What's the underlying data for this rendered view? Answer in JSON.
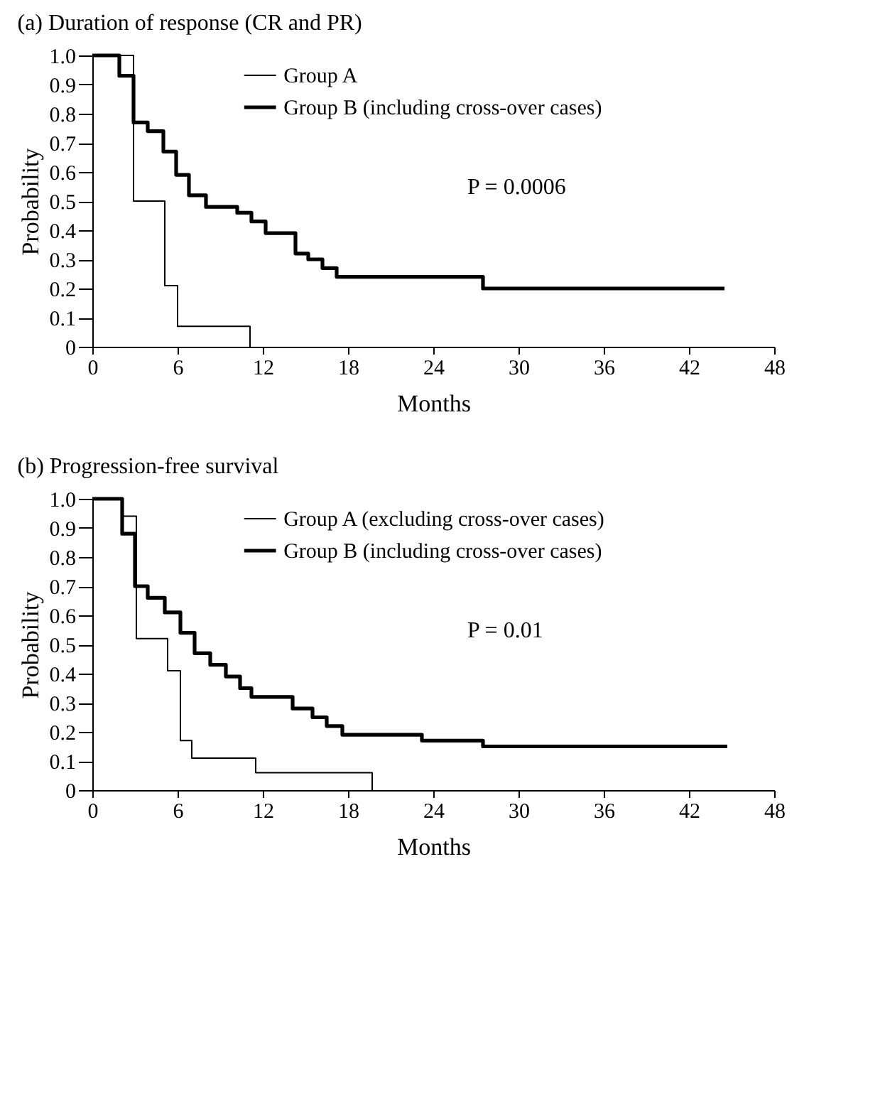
{
  "chart_data": [
    {
      "type": "step",
      "title": "(a) Duration of response (CR and PR)",
      "xlabel": "Months",
      "ylabel": "Probability",
      "xlim": [
        0,
        48
      ],
      "xticks": [
        0,
        6,
        12,
        18,
        24,
        30,
        36,
        42,
        48
      ],
      "ylim": [
        0,
        1
      ],
      "yticks": [
        0,
        0.1,
        0.2,
        0.3,
        0.4,
        0.5,
        0.6,
        0.7,
        0.8,
        0.9,
        {
          "value": 1,
          "label": "1.0"
        }
      ],
      "grid": false,
      "legend": "top",
      "annotations": [
        "P = 0.0006"
      ],
      "series": [
        {
          "name": "Group A",
          "color": "#000000",
          "x": [
            0,
            2.9,
            5.1,
            6.0,
            11.1
          ],
          "values": [
            1,
            0.5,
            0.21,
            0.07,
            0
          ]
        },
        {
          "name": "Group B (including cross-over cases)",
          "color": "#000000",
          "x": [
            0,
            1.9,
            2.9,
            3.9,
            5.0,
            5.9,
            6.8,
            8.0,
            10.2,
            11.2,
            12.2,
            14.3,
            15.2,
            16.2,
            17.2,
            27.5,
            44.5
          ],
          "values": [
            1,
            0.93,
            0.77,
            0.74,
            0.67,
            0.59,
            0.52,
            0.48,
            0.46,
            0.43,
            0.39,
            0.32,
            0.3,
            0.27,
            0.24,
            0.2,
            0.2
          ]
        }
      ]
    },
    {
      "type": "step",
      "title": "(b) Progression-free survival",
      "xlabel": "Months",
      "ylabel": "Probability",
      "xlim": [
        0,
        48
      ],
      "xticks": [
        0,
        6,
        12,
        18,
        24,
        30,
        36,
        42,
        48
      ],
      "ylim": [
        0,
        1
      ],
      "yticks": [
        0,
        0.1,
        0.2,
        0.3,
        0.4,
        0.5,
        0.6,
        0.7,
        0.8,
        0.9,
        {
          "value": 1,
          "label": "1.0"
        }
      ],
      "grid": false,
      "legend": "top",
      "annotations": [
        "P = 0.01"
      ],
      "series": [
        {
          "name": "Group A (excluding cross-over cases)",
          "color": "#000000",
          "x": [
            0,
            2.1,
            3.1,
            5.3,
            6.2,
            7.0,
            11.5,
            19.7
          ],
          "values": [
            1,
            0.94,
            0.52,
            0.41,
            0.17,
            0.11,
            0.06,
            0
          ]
        },
        {
          "name": "Group B (including cross-over cases)",
          "color": "#000000",
          "x": [
            0,
            2.1,
            3.0,
            3.9,
            5.1,
            6.2,
            7.2,
            8.3,
            9.4,
            10.4,
            11.2,
            14.1,
            15.5,
            16.5,
            17.6,
            23.2,
            27.5,
            44.7
          ],
          "values": [
            1,
            0.88,
            0.7,
            0.66,
            0.61,
            0.54,
            0.47,
            0.43,
            0.39,
            0.35,
            0.32,
            0.28,
            0.25,
            0.22,
            0.19,
            0.17,
            0.15,
            0.15
          ]
        }
      ]
    }
  ]
}
